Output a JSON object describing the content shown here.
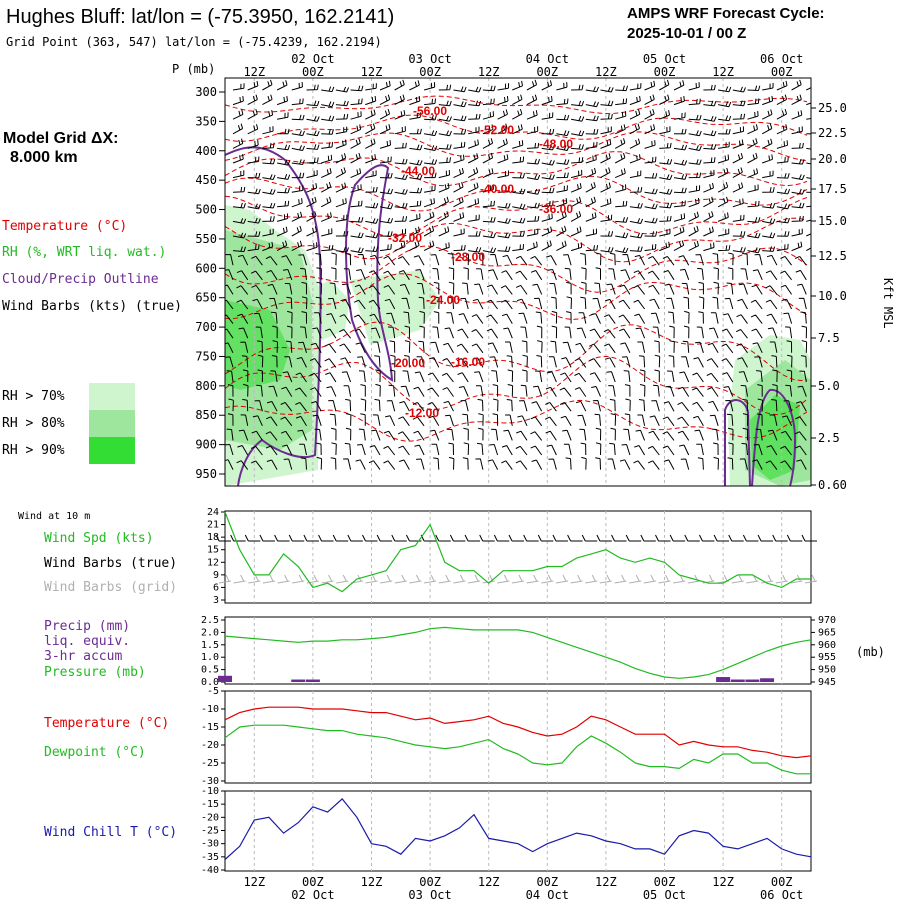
{
  "header": {
    "title": "Hughes Bluff:  lat/lon = (-75.3950, 162.2141)",
    "grid_point": "Grid Point (363, 547) lat/lon = (-75.4239, 162.2194)",
    "cycle_label": "AMPS WRF Forecast Cycle:",
    "cycle_value": "2025-10-01 / 00  Z"
  },
  "legend": {
    "model_grid": "Model Grid ΔX:",
    "model_grid_value": "8.000 km",
    "temperature": "Temperature (°C)",
    "rh": "RH (%, WRT liq. wat.)",
    "cloud": "Cloud/Precip Outline",
    "wind": "Wind Barbs (kts) (true)",
    "rh70": "RH > 70%",
    "rh80": "RH > 80%",
    "rh90": "RH > 90%",
    "wind10m": "Wind at 10 m",
    "windspd": "Wind Spd (kts)",
    "windbarbs_true": "Wind Barbs (true)",
    "windbarbs_grid": "Wind Barbs (grid)",
    "precip": "Precip (mm)",
    "precip2": "liq. equiv.",
    "precip3": "3-hr accum",
    "pressure": "Pressure (mb)",
    "pressure_unit": "(mb)",
    "temp2": "Temperature (°C)",
    "dew": "Dewpoint (°C)",
    "windchill": "Wind Chill T (°C)",
    "p_axis_title": "P (mb)",
    "kft_title": "Kft MSL"
  },
  "colors": {
    "temperature": "#e00000",
    "rh": "#22bb22",
    "cloud": "#6a2c91",
    "wind": "#000000",
    "grid_wind": "#b0b0b0",
    "windchill": "#1a1aaa",
    "rh70": "#cff5cf",
    "rh80": "#9ee69e",
    "rh90": "#33dd33"
  },
  "time_axis": {
    "top_hours": [
      "12Z",
      "00Z",
      "12Z",
      "00Z",
      "12Z",
      "00Z",
      "12Z",
      "00Z",
      "12Z",
      "00Z"
    ],
    "dates": [
      "02 Oct",
      "03 Oct",
      "04 Oct",
      "05 Oct",
      "06 Oct"
    ]
  },
  "chart_data": [
    {
      "type": "contour",
      "title": "Time-height cross section",
      "ylabel": "P (mb)",
      "y_ticks": [
        300,
        350,
        400,
        450,
        500,
        550,
        600,
        650,
        700,
        750,
        800,
        850,
        900,
        950
      ],
      "right_ticks": [
        "25.0",
        "22.5",
        "20.0",
        "17.5",
        "15.0",
        "12.5",
        "10.0",
        "7.5",
        "5.0",
        "2.5",
        "0.60"
      ],
      "right_label": "Kft MSL",
      "x_hours": [
        3,
        123
      ],
      "isotherm_labels": [
        "-56.00",
        "-52.00",
        "-48.00",
        "-44.00",
        "-40.00",
        "-36.00",
        "-32.00",
        "-28.00",
        "-24.00",
        "-20.00",
        "-16.00",
        "-12.00"
      ],
      "isotherms": [
        {
          "label": "-56.00",
          "value": -56,
          "level": 322,
          "amp": 6
        },
        {
          "label": "-52.00",
          "value": -52,
          "level": 362,
          "amp": 9
        },
        {
          "label": "-48.00",
          "value": -48,
          "level": 392,
          "amp": 10
        },
        {
          "label": "-44.00",
          "value": -44,
          "level": 432,
          "amp": 12
        },
        {
          "label": "-40.00",
          "value": -40,
          "level": 472,
          "amp": 12
        },
        {
          "label": "-36.00",
          "value": -36,
          "level": 512,
          "amp": 14
        },
        {
          "label": "-32.00",
          "value": -32,
          "level": 552,
          "amp": 15
        },
        {
          "label": "-28.00",
          "value": -28,
          "level": 600,
          "amp": 16
        },
        {
          "label": "-24.00",
          "value": -24,
          "level": 650,
          "amp": 16
        },
        {
          "label": "-20.00",
          "value": -20,
          "level": 740,
          "amp": 20
        },
        {
          "label": "-16.00",
          "value": -16,
          "level": 800,
          "amp": 20
        },
        {
          "label": "-12.00",
          "value": -12,
          "level": 860,
          "amp": 14
        }
      ]
    },
    {
      "type": "line",
      "title": "Wind Spd (kts)",
      "y_ticks": [
        3,
        6,
        9,
        12,
        15,
        18,
        21,
        24
      ],
      "ylim": [
        3,
        24
      ],
      "x": [
        3,
        6,
        9,
        12,
        15,
        18,
        21,
        24,
        27,
        30,
        33,
        36,
        39,
        42,
        45,
        48,
        51,
        54,
        57,
        60,
        63,
        66,
        69,
        72,
        75,
        78,
        81,
        84,
        87,
        90,
        93,
        96,
        99,
        102,
        105,
        108,
        111,
        114,
        117,
        120,
        123
      ],
      "series": [
        {
          "name": "Wind Spd (kts)",
          "values": [
            24,
            15,
            9,
            9,
            14,
            11,
            6,
            7,
            5,
            8,
            9,
            10,
            15,
            16,
            21,
            12,
            10,
            10,
            7,
            10,
            10,
            10,
            11,
            11,
            13,
            14,
            15,
            13,
            12,
            13,
            12,
            9,
            8,
            7,
            7,
            9,
            9,
            7,
            6,
            8,
            8
          ]
        }
      ]
    },
    {
      "type": "line",
      "title": "Precip / Pressure",
      "y_ticks_left": [
        "0.0",
        "0.5",
        "1.0",
        "1.5",
        "2.0",
        "2.5"
      ],
      "y_ticks_right": [
        "945",
        "950",
        "955",
        "960",
        "965",
        "970"
      ],
      "ylim_left": [
        0,
        2.5
      ],
      "ylim_right": [
        945,
        970
      ],
      "x": [
        3,
        6,
        9,
        12,
        15,
        18,
        21,
        24,
        27,
        30,
        33,
        36,
        39,
        42,
        45,
        48,
        51,
        54,
        57,
        60,
        63,
        66,
        69,
        72,
        75,
        78,
        81,
        84,
        87,
        90,
        93,
        96,
        99,
        102,
        105,
        108,
        111,
        114,
        117,
        120,
        123
      ],
      "series": [
        {
          "name": "Pressure (mb)",
          "values": [
            963.5,
            963,
            962.5,
            962,
            961.5,
            961,
            961.5,
            961.5,
            962,
            962,
            962.5,
            963,
            964,
            965,
            966.5,
            967,
            966.5,
            966,
            966,
            966,
            966,
            965,
            963,
            961,
            959,
            957,
            955,
            953,
            950.5,
            948.5,
            947,
            946.5,
            947,
            948,
            950,
            952.5,
            955,
            957.5,
            959.5,
            961,
            962
          ]
        },
        {
          "name": "Precip (mm)",
          "values": [
            0.25,
            0,
            0,
            0,
            0,
            0.1,
            0.1,
            0,
            0,
            0,
            0,
            0,
            0,
            0,
            0,
            0,
            0,
            0,
            0,
            0,
            0,
            0,
            0,
            0,
            0,
            0,
            0,
            0,
            0,
            0,
            0,
            0,
            0,
            0,
            0.2,
            0.1,
            0.1,
            0.15,
            0,
            0,
            0
          ]
        }
      ]
    },
    {
      "type": "line",
      "title": "Temperature / Dewpoint",
      "y_ticks": [
        -30,
        -25,
        -20,
        -15,
        -10,
        -5
      ],
      "ylim": [
        -30,
        -5
      ],
      "x": [
        3,
        6,
        9,
        12,
        15,
        18,
        21,
        24,
        27,
        30,
        33,
        36,
        39,
        42,
        45,
        48,
        51,
        54,
        57,
        60,
        63,
        66,
        69,
        72,
        75,
        78,
        81,
        84,
        87,
        90,
        93,
        96,
        99,
        102,
        105,
        108,
        111,
        114,
        117,
        120,
        123
      ],
      "series": [
        {
          "name": "Temperature (°C)",
          "values": [
            -13,
            -11,
            -10,
            -9.5,
            -9.5,
            -9.5,
            -10,
            -10,
            -10,
            -10.5,
            -11,
            -11,
            -12,
            -13,
            -12.5,
            -14,
            -13.5,
            -13,
            -12,
            -14,
            -15,
            -16.5,
            -17.5,
            -17,
            -15,
            -12,
            -13,
            -15,
            -17,
            -17,
            -17,
            -20,
            -19,
            -20,
            -20.5,
            -20.5,
            -21.5,
            -22,
            -23,
            -23.5,
            -23
          ]
        },
        {
          "name": "Dewpoint (°C)",
          "values": [
            -18,
            -15,
            -14.5,
            -14.5,
            -14.5,
            -15,
            -15.5,
            -16,
            -16,
            -17,
            -17.5,
            -18,
            -19,
            -20,
            -20.5,
            -21,
            -20.5,
            -19.5,
            -18.5,
            -21,
            -22.5,
            -25,
            -25.5,
            -25,
            -20.5,
            -17.5,
            -19.5,
            -22,
            -25,
            -26,
            -26,
            -26.5,
            -24,
            -25,
            -22.5,
            -22.5,
            -25,
            -25,
            -27,
            -28,
            -28
          ]
        }
      ]
    },
    {
      "type": "line",
      "title": "Wind Chill T (°C)",
      "y_ticks": [
        -40,
        -35,
        -30,
        -25,
        -20,
        -15,
        -10
      ],
      "ylim": [
        -40,
        -10
      ],
      "x": [
        3,
        6,
        9,
        12,
        15,
        18,
        21,
        24,
        27,
        30,
        33,
        36,
        39,
        42,
        45,
        48,
        51,
        54,
        57,
        60,
        63,
        66,
        69,
        72,
        75,
        78,
        81,
        84,
        87,
        90,
        93,
        96,
        99,
        102,
        105,
        108,
        111,
        114,
        117,
        120,
        123
      ],
      "series": [
        {
          "name": "Wind Chill T (°C)",
          "values": [
            -36,
            -31,
            -21,
            -20,
            -26,
            -22,
            -16,
            -18,
            -13,
            -20,
            -30,
            -31,
            -34,
            -28,
            -29,
            -27,
            -24,
            -19,
            -28,
            -29,
            -30,
            -33,
            -30,
            -28,
            -26,
            -27,
            -29,
            -30,
            -32,
            -32,
            -34,
            -27,
            -25,
            -26,
            -31,
            -32,
            -30,
            -28,
            -32,
            -34,
            -35
          ]
        }
      ]
    }
  ]
}
